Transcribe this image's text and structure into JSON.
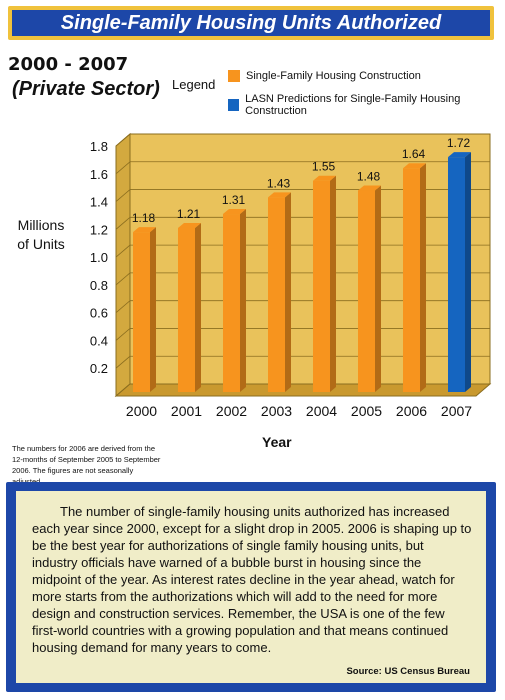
{
  "title": "Single-Family Housing Units Authorized",
  "years_label": "2000 - 2007",
  "sector_label": "(Private Sector)",
  "legend": {
    "title": "Legend",
    "items": [
      {
        "label": "Single-Family Housing Construction",
        "color": "#f7941e"
      },
      {
        "label": "LASN Predictions for Single-Family Housing Construction",
        "color": "#1565c0"
      }
    ]
  },
  "footnote": "The numbers for 2006 are derived from the 12-months of September 2005 to September 2006. The figures are not seasonally adjusted.",
  "paragraph": "The number of single-family housing units authorized has increased each year since 2000, except for a slight drop in 2005. 2006 is shaping up to be the best year for authorizations of single family housing units, but industry officials have warned of a bubble burst in housing since the midpoint of the year. As interest rates decline in the year ahead, watch for more starts from the authorizations which will add to the need for more design and construction services. Remember,  the USA is one of the few first-world countries with a growing population and that means continued housing demand for many years to come.",
  "source": "Source: US Census  Bureau",
  "chart_data": {
    "type": "bar",
    "title": "Single-Family Housing Units Authorized",
    "xlabel": "Year",
    "ylabel": "Millions of Units",
    "categories": [
      "2000",
      "2001",
      "2002",
      "2003",
      "2004",
      "2005",
      "2006",
      "2007"
    ],
    "values": [
      1.18,
      1.21,
      1.31,
      1.43,
      1.55,
      1.48,
      1.64,
      1.72
    ],
    "value_labels": [
      "1.18",
      "1.21",
      "1.31",
      "1.43",
      "1.55",
      "1.48",
      "1.64",
      "1.72"
    ],
    "predicted": [
      false,
      false,
      false,
      false,
      false,
      false,
      false,
      true
    ],
    "yticks": [
      "0.2",
      "0.4",
      "0.6",
      "0.8",
      "1.0",
      "1.2",
      "1.4",
      "1.6",
      "1.8"
    ],
    "ytick_values": [
      0.2,
      0.4,
      0.6,
      0.8,
      1.0,
      1.2,
      1.4,
      1.6,
      1.8
    ],
    "ylim": [
      0,
      1.8
    ],
    "grid": true,
    "legend_position": "top",
    "colors": {
      "actual": "#f7941e",
      "predicted": "#1565c0",
      "background": "#e9c25b"
    }
  }
}
